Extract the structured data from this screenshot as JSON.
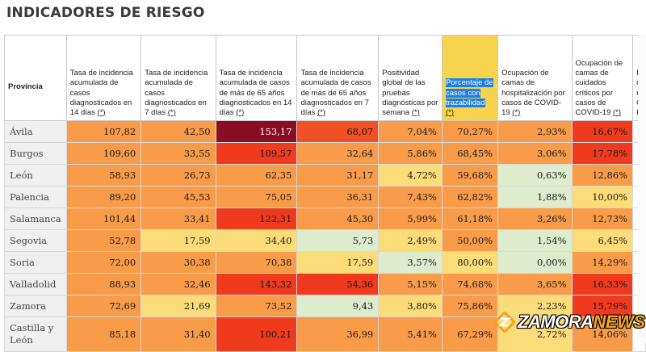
{
  "page": {
    "title": "INDICADORES DE RIESGO"
  },
  "table": {
    "headers": [
      {
        "text": "Provincia",
        "ast": ""
      },
      {
        "text": "Tasa de incidencia acumulada de casos diagnosticados en 14 días",
        "ast": "(*)"
      },
      {
        "text": "Tasa de incidencia acumulada de casos diagnosticados en 7 días",
        "ast": "(*)"
      },
      {
        "text": "Tasa de incidencia acumulada de casos de más de 65 años diagnosticados en 14 días",
        "ast": "(*)"
      },
      {
        "text": "Tasa de incidencia acumulada de casos de más de 65 años diagnosticados en 7 días",
        "ast": "(*)"
      },
      {
        "text": "Positividad global de las pruebas diagnósticas por semana",
        "ast": "(*)"
      },
      {
        "text": "Porcentaje de casos con trazabilidad",
        "ast": "(*)"
      },
      {
        "text": "Ocupación de camas de hospitalización por casos de COVID-19",
        "ast": "(*)"
      },
      {
        "text": "Ocupación de camas de cuidados críticos por casos de COVID-19",
        "ast": "(*)"
      },
      {
        "text": "I\nc\nr\nC\nL",
        "ast": ""
      }
    ],
    "rows": [
      {
        "name": "Ávila",
        "values": [
          "107,82",
          "42,50",
          "153,17",
          "68,07",
          "7,04%",
          "70,27%",
          "2,93%",
          "16,67%"
        ],
        "colors": [
          "#f89c4a",
          "#f89c4a",
          "#8b0d24",
          "#f05024",
          "#f89c4a",
          "#f89c4a",
          "#f89c4a",
          "#f03a1e"
        ]
      },
      {
        "name": "Burgos",
        "values": [
          "109,60",
          "33,55",
          "109,57",
          "32,64",
          "5,86%",
          "68,45%",
          "3,06%",
          "17,78%"
        ],
        "colors": [
          "#f89c4a",
          "#f89c4a",
          "#f03a1e",
          "#f89c4a",
          "#f89c4a",
          "#f89c4a",
          "#f89c4a",
          "#f03a1e"
        ]
      },
      {
        "name": "León",
        "values": [
          "58,93",
          "26,73",
          "62,35",
          "31,17",
          "4,72%",
          "59,68%",
          "0,63%",
          "12,86%"
        ],
        "colors": [
          "#f89c4a",
          "#f89c4a",
          "#f89c4a",
          "#f89c4a",
          "#fbdc78",
          "#f89c4a",
          "#dceccc",
          "#f89c4a"
        ]
      },
      {
        "name": "Palencia",
        "values": [
          "89,20",
          "45,53",
          "75,05",
          "36,31",
          "7,43%",
          "62,82%",
          "1,88%",
          "10,00%"
        ],
        "colors": [
          "#f89c4a",
          "#f89c4a",
          "#f89c4a",
          "#f89c4a",
          "#f89c4a",
          "#f89c4a",
          "#dceccc",
          "#fbdc78"
        ]
      },
      {
        "name": "Salamanca",
        "values": [
          "101,44",
          "33,41",
          "122,31",
          "45,30",
          "5,99%",
          "61,18%",
          "3,26%",
          "12,73%"
        ],
        "colors": [
          "#f89c4a",
          "#f89c4a",
          "#f03a1e",
          "#f89c4a",
          "#f89c4a",
          "#f89c4a",
          "#f89c4a",
          "#f89c4a"
        ]
      },
      {
        "name": "Segovia",
        "values": [
          "52,78",
          "17,59",
          "34,40",
          "5,73",
          "2,49%",
          "50,00%",
          "1,54%",
          "6,45%"
        ],
        "colors": [
          "#f89c4a",
          "#fbdc78",
          "#fbdc78",
          "#dceccc",
          "#fbdc78",
          "#f89c4a",
          "#dceccc",
          "#fbdc78"
        ]
      },
      {
        "name": "Soria",
        "values": [
          "72,00",
          "30,38",
          "70,38",
          "17,59",
          "3,57%",
          "80,00%",
          "0,00%",
          "14,29%"
        ],
        "colors": [
          "#f89c4a",
          "#f89c4a",
          "#f89c4a",
          "#fbdc78",
          "#dceccc",
          "#fbdc78",
          "#dceccc",
          "#f89c4a"
        ]
      },
      {
        "name": "Valladolid",
        "values": [
          "88,93",
          "32,46",
          "143,32",
          "54,36",
          "5,15%",
          "74,68%",
          "3,65%",
          "16,33%"
        ],
        "colors": [
          "#f89c4a",
          "#f89c4a",
          "#f03a1e",
          "#f03a1e",
          "#f89c4a",
          "#f89c4a",
          "#f89c4a",
          "#f03a1e"
        ]
      },
      {
        "name": "Zamora",
        "values": [
          "72,69",
          "21,69",
          "73,52",
          "9,43",
          "3,80%",
          "75,86%",
          "2,23%",
          "15,79%"
        ],
        "colors": [
          "#f89c4a",
          "#fbdc78",
          "#f89c4a",
          "#dceccc",
          "#fbdc78",
          "#f89c4a",
          "#fbdc78",
          "#f03a1e"
        ]
      },
      {
        "name": "Castilla y León",
        "values": [
          "85,18",
          "31,40",
          "100,21",
          "36,99",
          "5,41%",
          "67,29%",
          "2,72%",
          "14,06%"
        ],
        "colors": [
          "#f89c4a",
          "#f89c4a",
          "#f03a1e",
          "#f89c4a",
          "#f89c4a",
          "#f89c4a",
          "#fbdc78",
          "#f89c4a"
        ]
      }
    ]
  },
  "watermark": {
    "text_main": "ZAMORA",
    "text_accent": "NEWS"
  }
}
